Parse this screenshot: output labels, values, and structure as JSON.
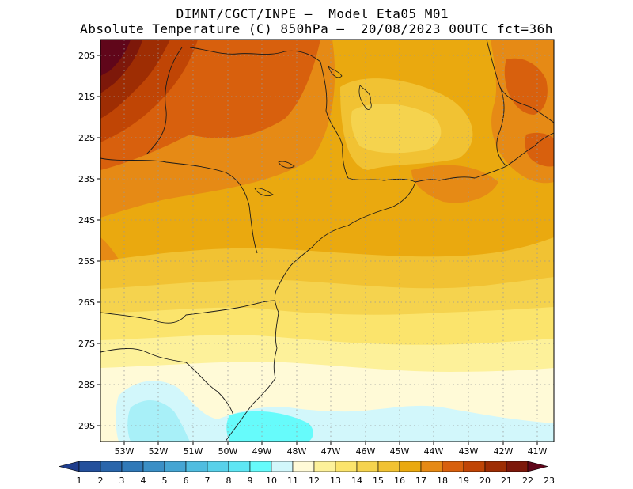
{
  "header": {
    "line1": "DIMNT/CGCT/INPE –  Model Eta05_M01_",
    "line2": "Absolute Temperature (C) 850hPa –  20/08/2023 00UTC fct=36h"
  },
  "map": {
    "lat_labels": [
      "20S",
      "21S",
      "22S",
      "23S",
      "24S",
      "25S",
      "26S",
      "27S",
      "28S",
      "29S"
    ],
    "lon_labels": [
      "53W",
      "52W",
      "51W",
      "50W",
      "49W",
      "48W",
      "47W",
      "46W",
      "45W",
      "44W",
      "43W",
      "42W",
      "41W"
    ]
  },
  "colorbar": {
    "labels": [
      "1",
      "2",
      "3",
      "4",
      "5",
      "6",
      "7",
      "8",
      "9",
      "10",
      "11",
      "12",
      "13",
      "14",
      "15",
      "16",
      "17",
      "18",
      "19",
      "20",
      "21",
      "22",
      "23"
    ],
    "colors": [
      "#1f3d8c",
      "#24509c",
      "#2a66ab",
      "#3079b8",
      "#3a8fc6",
      "#45a5d3",
      "#50bde0",
      "#58d1ea",
      "#5ee6f4",
      "#66fbfb",
      "#d2f7fb",
      "#fffad7",
      "#fdf19a",
      "#fbe46c",
      "#f5d34e",
      "#f1c233",
      "#eaa90f",
      "#e68a15",
      "#d8600d",
      "#c04505",
      "#9e2d03",
      "#7d180a",
      "#60061a"
    ]
  }
}
